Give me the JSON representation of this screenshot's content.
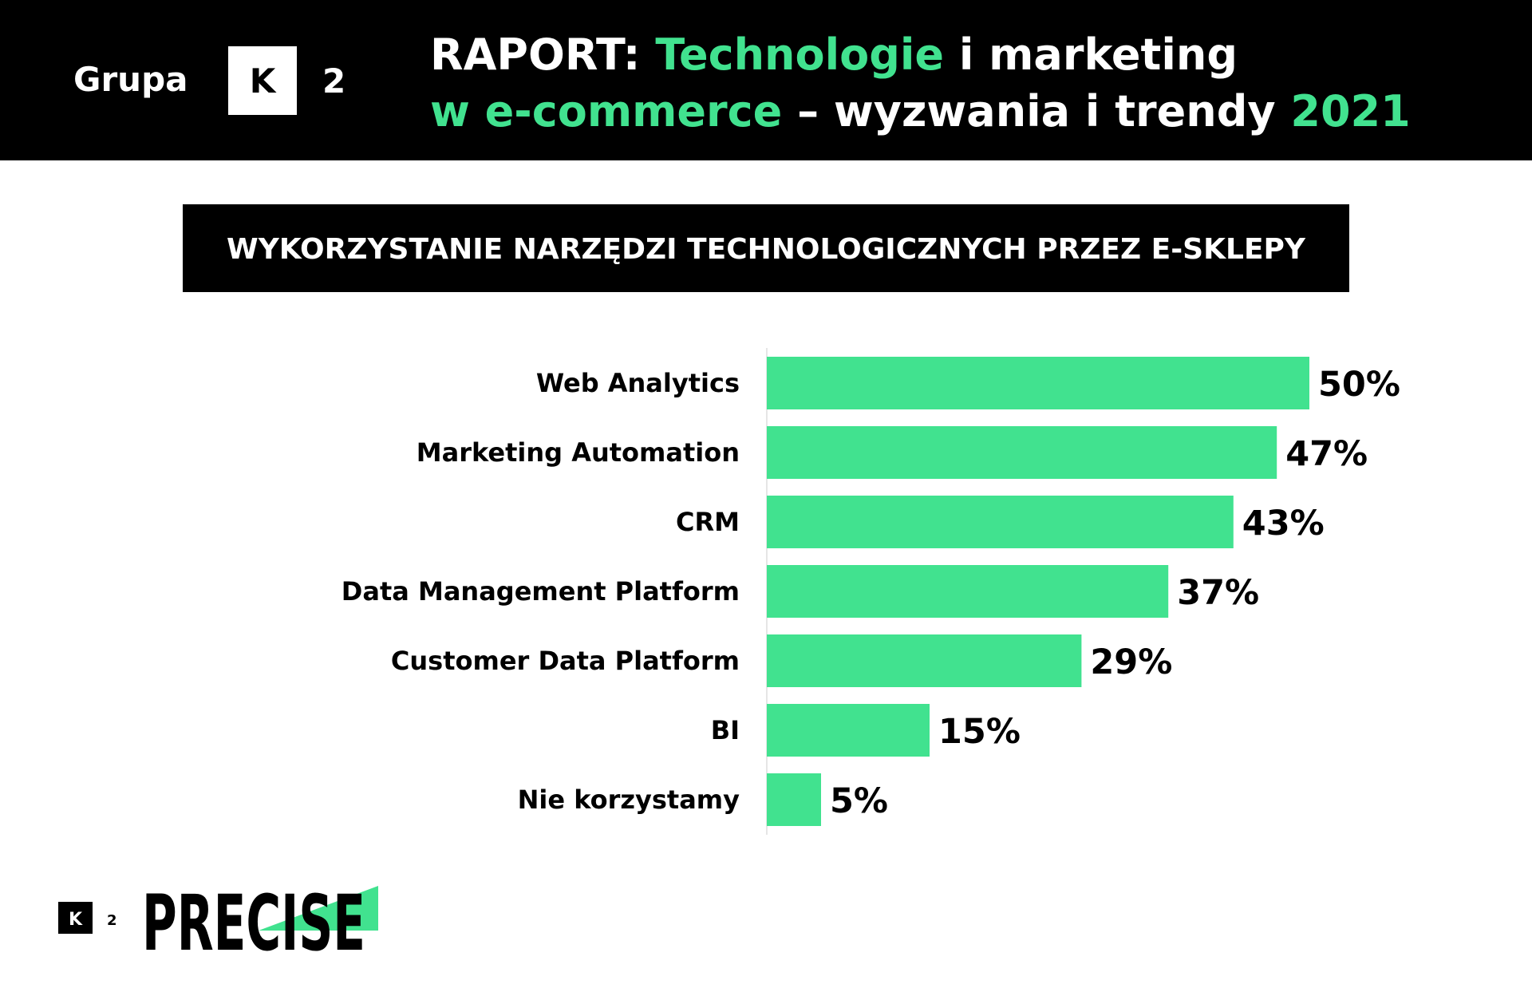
{
  "header": {
    "brand": "Grupa",
    "logo_letter": "K",
    "logo_number": "2",
    "title_line1": [
      "RAPORT:",
      "Technologie",
      "i marketing"
    ],
    "title_line2": [
      "w e-commerce",
      "– wyzwania i trendy",
      "2021"
    ]
  },
  "chart_data": {
    "type": "bar",
    "orientation": "horizontal",
    "title": "WYKORZYSTANIE NARZĘDZI TECHNOLOGICZNYCH PRZEZ E-SKLEPY",
    "categories": [
      "Web Analytics",
      "Marketing Automation",
      "CRM",
      "Data Management Platform",
      "Customer Data Platform",
      "BI",
      "Nie korzystamy"
    ],
    "values": [
      50,
      47,
      43,
      37,
      29,
      15,
      5
    ],
    "value_labels": [
      "50%",
      "47%",
      "43%",
      "37%",
      "29%",
      "15%",
      "5%"
    ],
    "color": "#41e28f"
  },
  "footer": {
    "logo_letter": "K",
    "logo_number": "2",
    "brand": "PRECISE"
  }
}
